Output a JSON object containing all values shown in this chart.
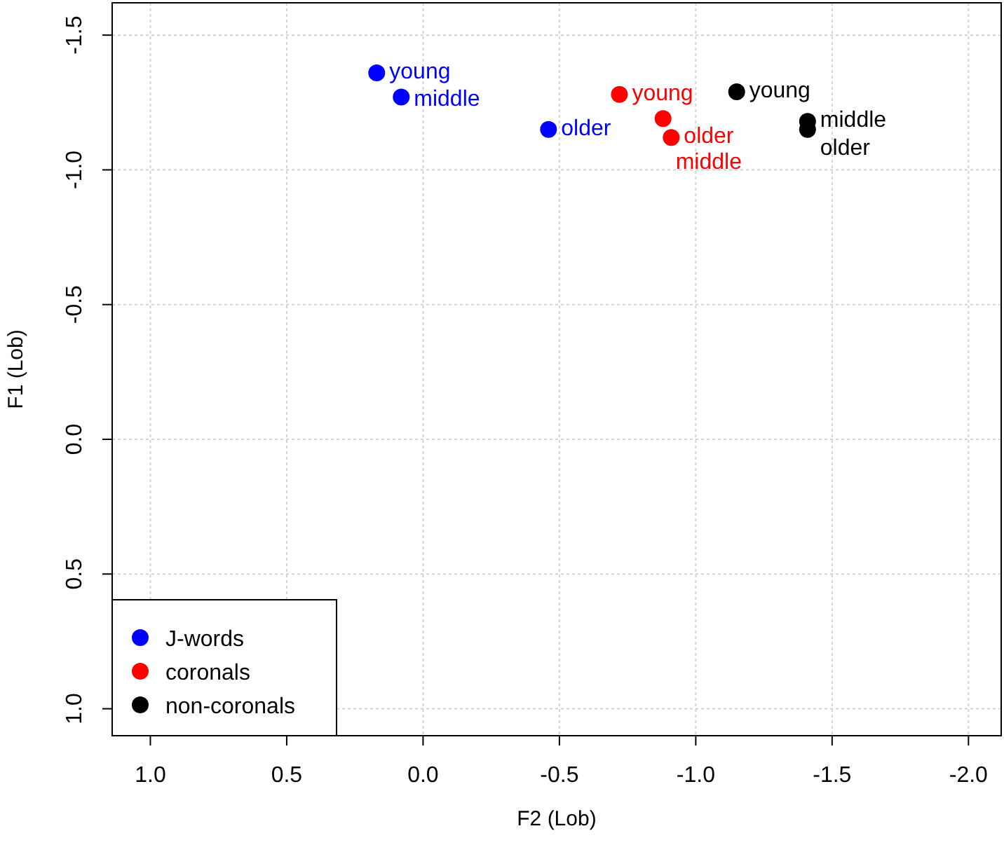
{
  "chart_data": {
    "type": "scatter",
    "xlabel": "F2 (Lob)",
    "ylabel": "F1 (Lob)",
    "xlim": [
      1.14,
      -2.12
    ],
    "xticks": [
      {
        "value": 1,
        "label": "1.0"
      },
      {
        "value": 0.5,
        "label": "0.5"
      },
      {
        "value": 0,
        "label": "0.0"
      },
      {
        "value": -0.5,
        "label": "-0.5"
      },
      {
        "value": -1,
        "label": "-1.0"
      },
      {
        "value": -1.5,
        "label": "-1.5"
      },
      {
        "value": -2,
        "label": "-2.0"
      }
    ],
    "ylim": [
      1.1,
      -1.62
    ],
    "yticks": [
      {
        "value": -1.5,
        "label": "-1.5"
      },
      {
        "value": -1,
        "label": "-1.0"
      },
      {
        "value": -0.5,
        "label": "-0.5"
      },
      {
        "value": 0,
        "label": "0.0"
      },
      {
        "value": 0.5,
        "label": "0.5"
      },
      {
        "value": 1,
        "label": "1.0"
      }
    ],
    "grid": true,
    "legend": "bottom left",
    "marker": "circle",
    "series": [
      {
        "name": "J-words",
        "color": "#0000ff",
        "x": [
          0.17,
          0.08,
          -0.46
        ],
        "values": [
          -1.36,
          -1.27,
          -1.15
        ]
      },
      {
        "name": "coronals",
        "color": "#ff0000",
        "x": [
          -0.72,
          -0.88,
          -0.91
        ],
        "values": [
          -1.28,
          -1.19,
          -1.12
        ]
      },
      {
        "name": "non-coronals",
        "color": "#000000",
        "x": [
          -1.15,
          -1.41,
          -1.41
        ],
        "values": [
          -1.29,
          -1.18,
          -1.15
        ]
      }
    ],
    "annotations": [
      {
        "text": "young",
        "x": 0.17,
        "y": -1.36
      },
      {
        "text": "middle",
        "x": 0.08,
        "y": -1.27
      },
      {
        "text": "older",
        "x": -0.46,
        "y": -1.15
      },
      {
        "text": "young",
        "x": -0.72,
        "y": -1.28
      },
      {
        "text": "middle",
        "x": -0.88,
        "y": -1.19
      },
      {
        "text": "older",
        "x": -0.91,
        "y": -1.12
      },
      {
        "text": "young",
        "x": -1.15,
        "y": -1.29
      },
      {
        "text": "middle",
        "x": -1.41,
        "y": -1.18
      },
      {
        "text": "older",
        "x": -1.41,
        "y": -1.15
      }
    ]
  }
}
